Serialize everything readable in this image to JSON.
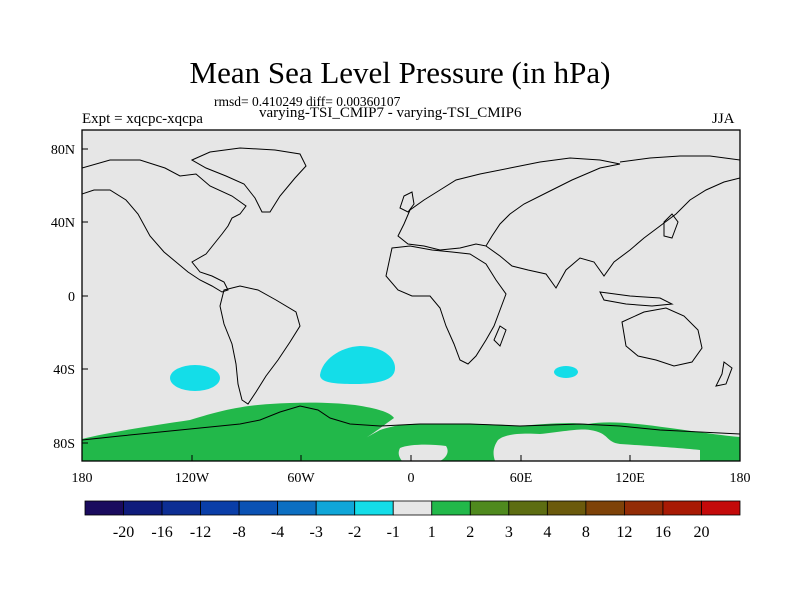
{
  "title": "Mean Sea Level Pressure (in hPa)",
  "stats": "rmsd= 0.410249 diff= 0.00360107",
  "subtitle": "varying-TSI_CMIP7 - varying-TSI_CMIP6",
  "expt": "Expt = xqcpc-xqcpa",
  "season": "JJA",
  "lat_ticks": [
    "80N",
    "40N",
    "0",
    "40S",
    "80S"
  ],
  "lon_ticks": [
    "180",
    "120W",
    "60W",
    "0",
    "60E",
    "120E",
    "180"
  ],
  "colorbar": {
    "colors": [
      "#1a0b5e",
      "#0f1c7c",
      "#0d2e94",
      "#0a3ea8",
      "#0a52b4",
      "#0c6fc2",
      "#10a6d8",
      "#14dde8",
      "#e6e6e6",
      "#22b84a",
      "#4f8a1e",
      "#5d6d12",
      "#6b5a0c",
      "#7e4208",
      "#932c06",
      "#a81a04",
      "#c40a0a"
    ],
    "labels": [
      "-20",
      "-16",
      "-12",
      "-8",
      "-4",
      "-3",
      "-2",
      "-1",
      "1",
      "2",
      "3",
      "4",
      "8",
      "12",
      "16",
      "20"
    ]
  },
  "chart_data": {
    "type": "map",
    "variable": "Mean Sea Level Pressure difference (hPa)",
    "projection": "cylindrical equidistant",
    "lon_range": [
      -180,
      180
    ],
    "lat_range": [
      -90,
      90
    ],
    "background_bin": "-1 to 1",
    "regions": [
      {
        "name": "SE Pacific anomaly",
        "bin": "-2 to -1",
        "lon_center": -120,
        "lat_center": -43
      },
      {
        "name": "S Atlantic anomaly",
        "bin": "-2 to -1",
        "lon_center": -27,
        "lat_center": -40
      },
      {
        "name": "S Indian anomaly",
        "bin": "-2 to -1",
        "lon_center": 92,
        "lat_center": -42
      },
      {
        "name": "Antarctic / Southern Ocean band",
        "bin": "1 to 2",
        "lon_range": [
          -180,
          180
        ],
        "lat_range": [
          -90,
          -58
        ]
      }
    ]
  }
}
